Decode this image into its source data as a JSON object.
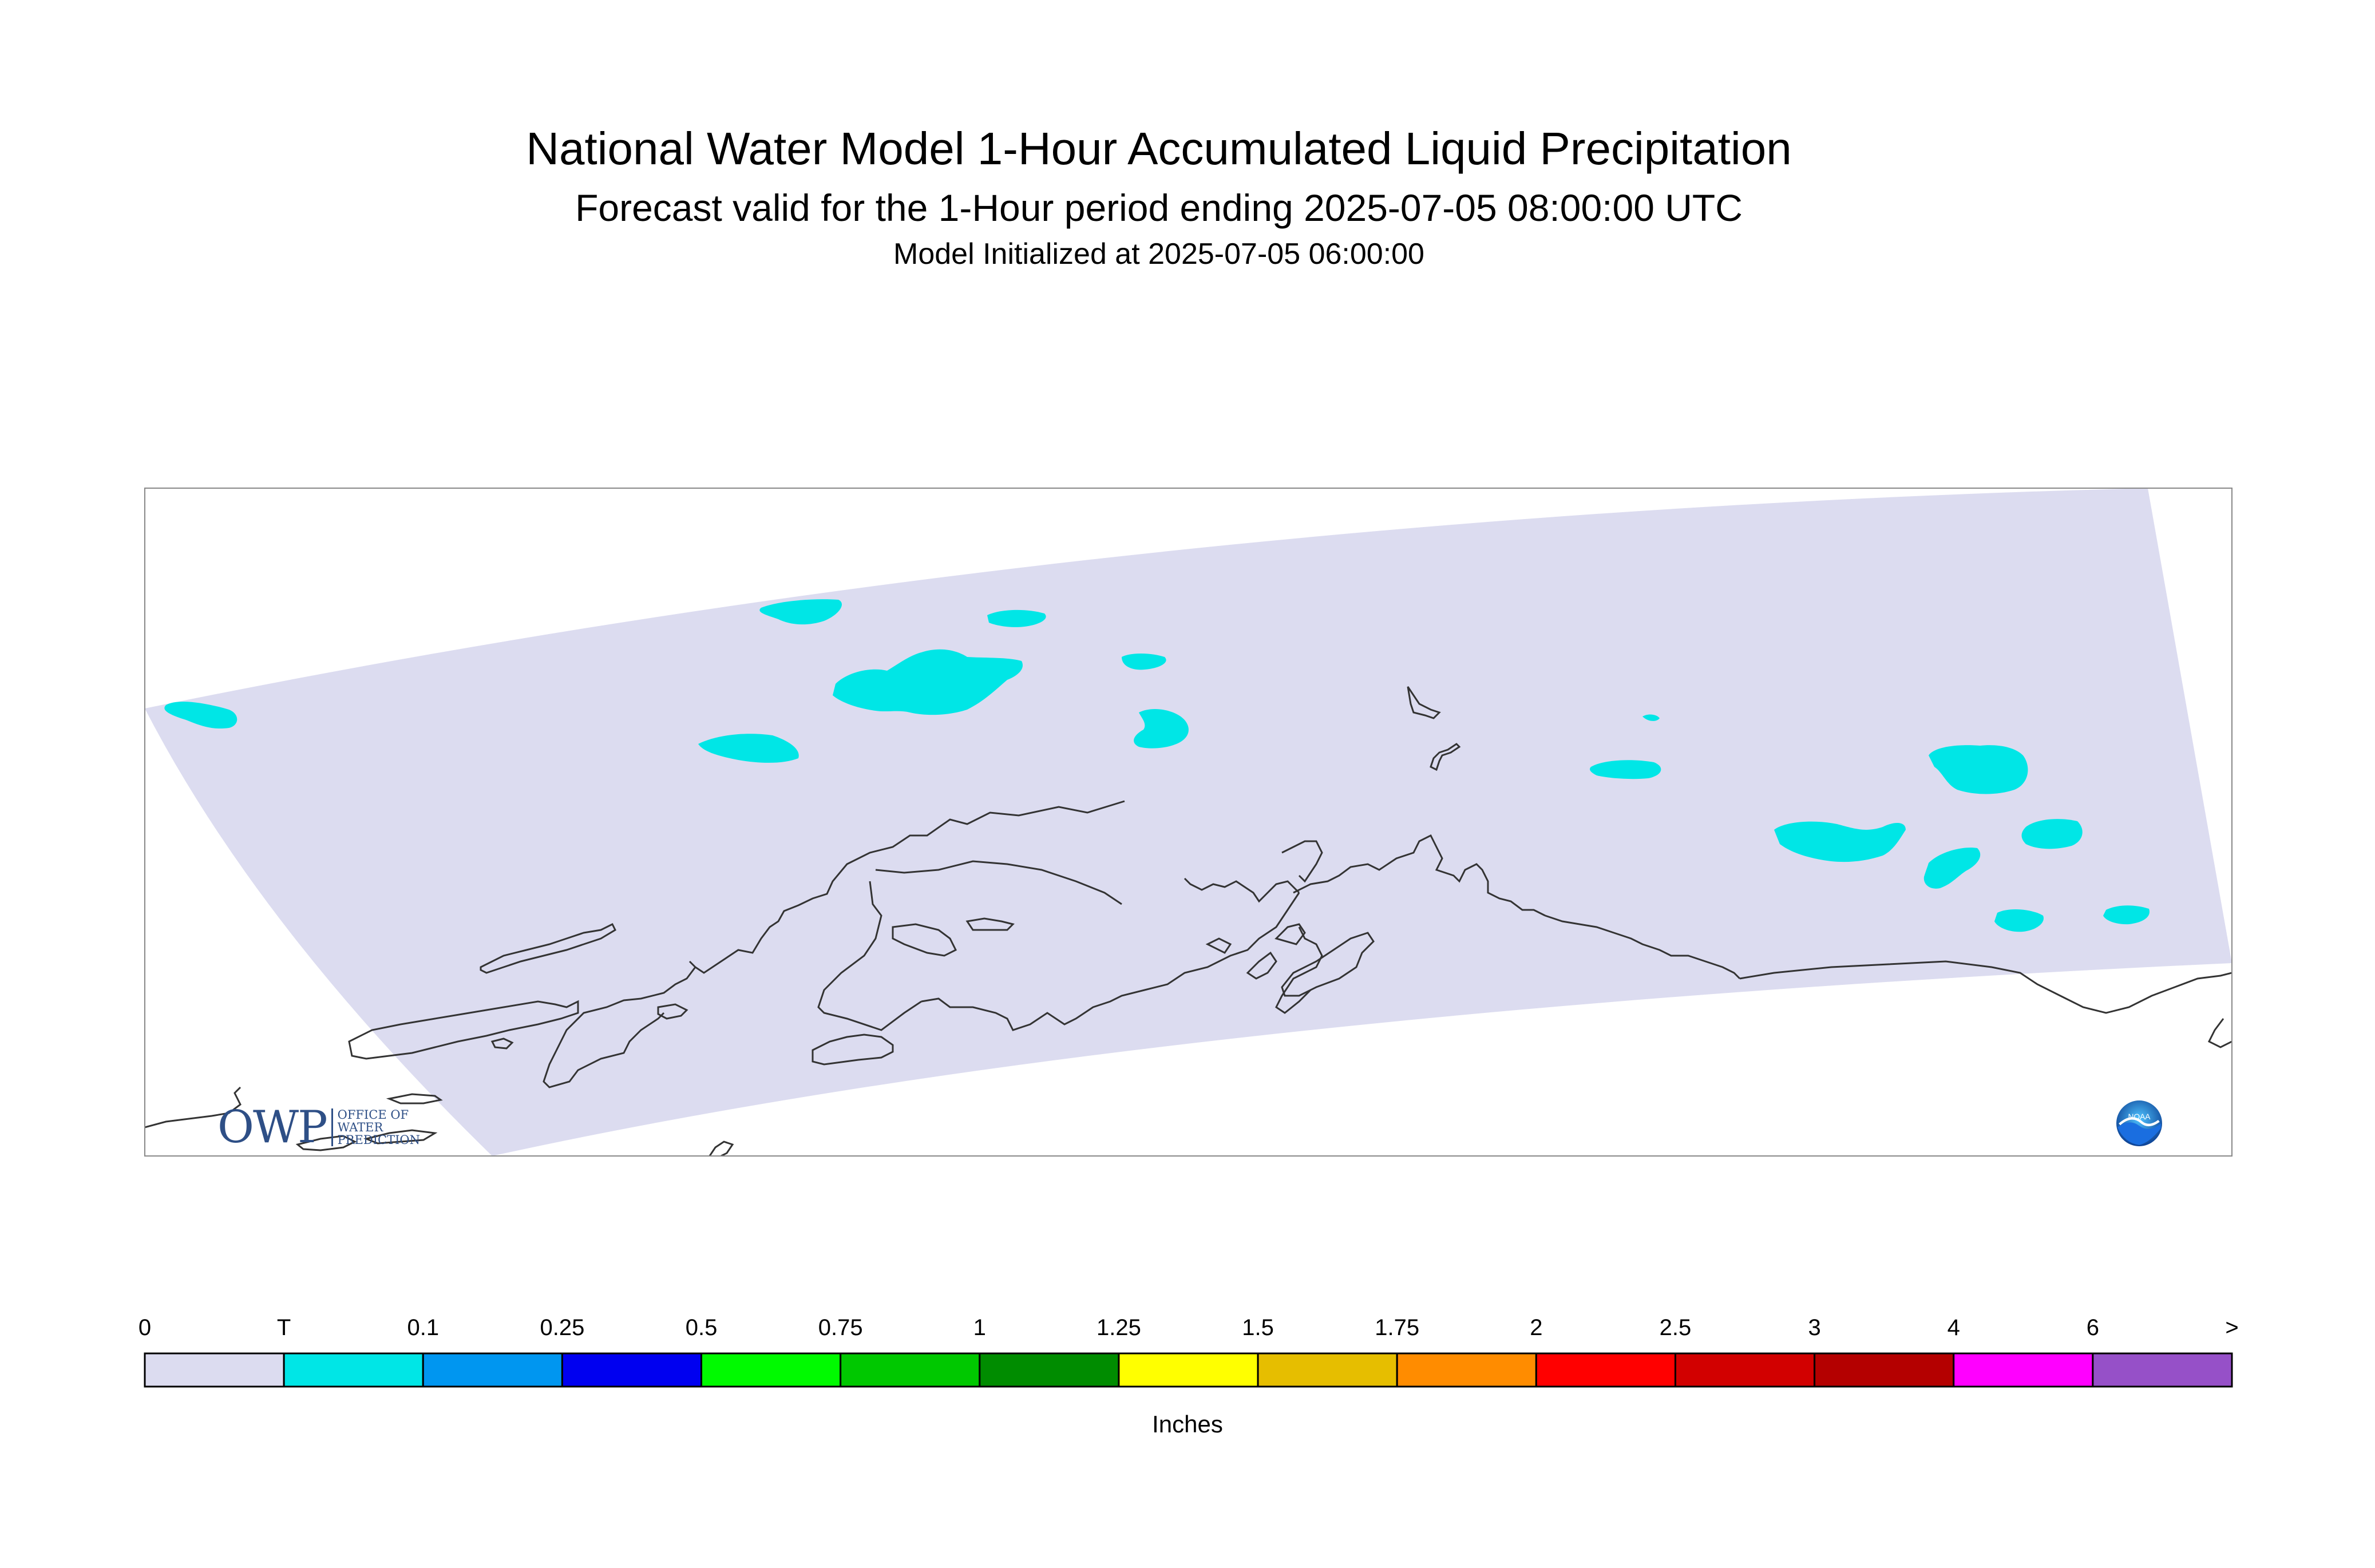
{
  "title": "National Water Model 1-Hour Accumulated Liquid Precipitation",
  "subtitle": "Forecast valid for the 1-Hour period ending 2025-07-05 08:00:00 UTC",
  "init_line": "Model Initialized at 2025-07-05 06:00:00",
  "legend": {
    "labels": [
      "0",
      "T",
      "0.1",
      "0.25",
      "0.5",
      "0.75",
      "1",
      "1.25",
      "1.5",
      "1.75",
      "2",
      "2.5",
      "3",
      "4",
      "6",
      ">"
    ],
    "colors": [
      "#dcdcf0",
      "#00e6e6",
      "#0096f0",
      "#0000f0",
      "#00fa00",
      "#00c800",
      "#008c00",
      "#ffff00",
      "#e6be00",
      "#ff8c00",
      "#ff0000",
      "#d20000",
      "#b40000",
      "#ff00ff",
      "#9650c8"
    ],
    "units": "Inches"
  },
  "logos": {
    "owp_text": "OWP",
    "owp_small_lines": [
      "Office of",
      "Water",
      "Prediction"
    ],
    "noaa_text": "NOAA"
  },
  "colors": {
    "domain_fill": "#dcdcf0",
    "precip_fill": "#00e6e6",
    "coastline": "#333333",
    "frame": "#888888"
  }
}
